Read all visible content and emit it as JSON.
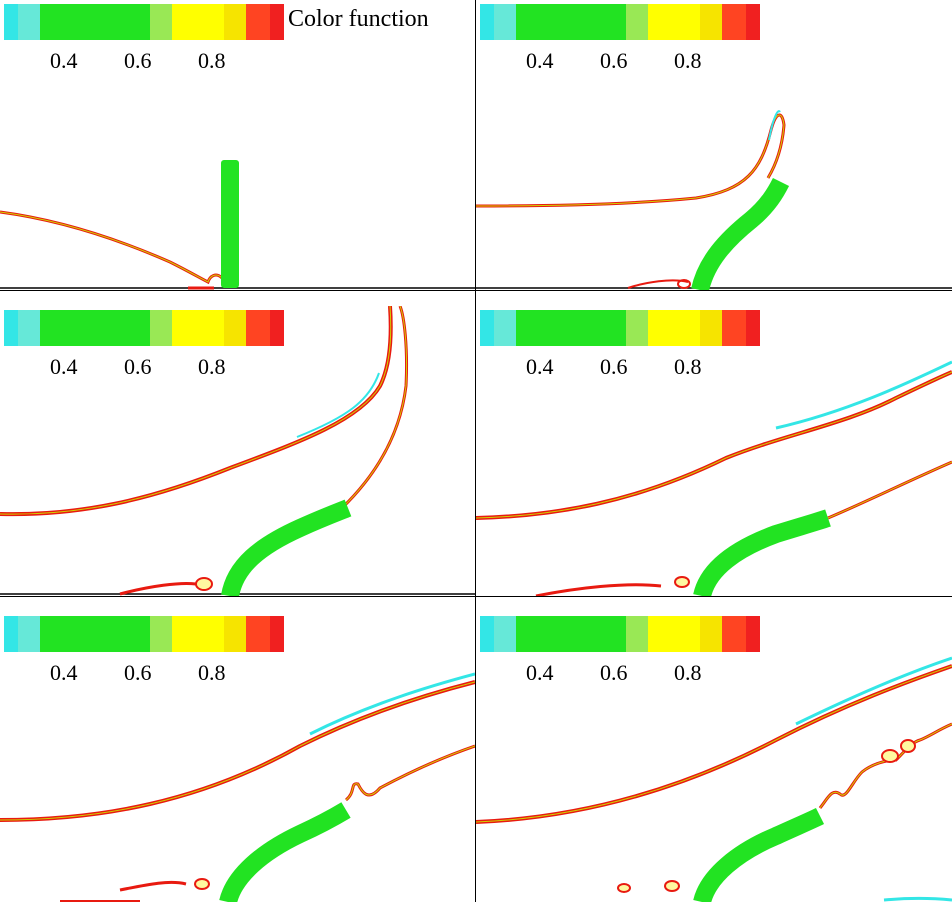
{
  "colorbar": {
    "title": "Color function",
    "ticks": [
      "0.4",
      "0.6",
      "0.8"
    ],
    "segments": [
      "#33e6e6",
      "#66e8d8",
      "#22e322",
      "#22e322",
      "#22e322",
      "#99e855",
      "#ffff00",
      "#f6e400",
      "#ff4422",
      "#f02020"
    ]
  },
  "colors": {
    "interface_outer": "#e81a10",
    "interface_inner": "#cfd400",
    "cyan_layer": "#33e6e6",
    "plate": "#22e322"
  },
  "panels_count": 6
}
